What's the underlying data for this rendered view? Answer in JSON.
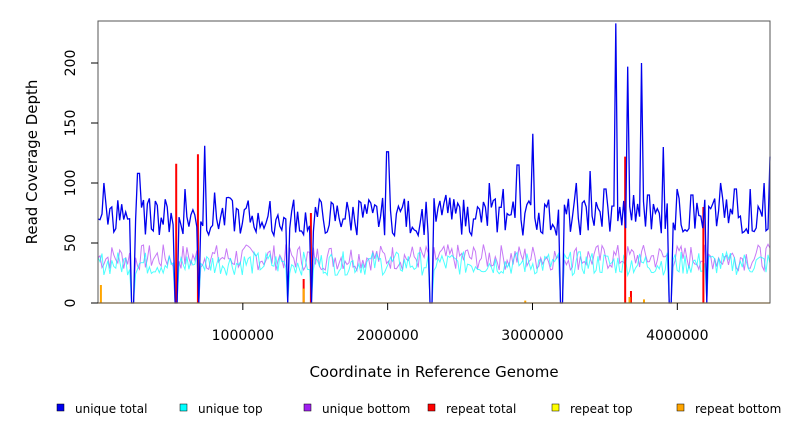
{
  "chart_data": {
    "type": "line",
    "xlabel": "Coordinate in Reference Genome",
    "ylabel": "Read Coverage Depth",
    "xlim": [
      0,
      4640000
    ],
    "ylim": [
      0,
      235
    ],
    "x_ticks": [
      {
        "value": 1000000,
        "label": "1000000"
      },
      {
        "value": 2000000,
        "label": "2000000"
      },
      {
        "value": 3000000,
        "label": "3000000"
      },
      {
        "value": 4000000,
        "label": "4000000"
      }
    ],
    "y_ticks": [
      {
        "value": 0,
        "label": "0"
      },
      {
        "value": 50,
        "label": "50"
      },
      {
        "value": 100,
        "label": "100"
      },
      {
        "value": 150,
        "label": "150"
      },
      {
        "value": 200,
        "label": "200"
      }
    ],
    "legend_position": "bottom",
    "series": [
      {
        "name": "unique total",
        "color": "#0000ee",
        "x": [
          0,
          40000,
          100000,
          120000,
          200000,
          240000,
          280000,
          400000,
          500000,
          540000,
          600000,
          700000,
          740000,
          800000,
          900000,
          1000000,
          1100000,
          1200000,
          1300000,
          1310000,
          1400000,
          1470000,
          1500000,
          1600000,
          1700000,
          1800000,
          1900000,
          2000000,
          2100000,
          2200000,
          2300000,
          2400000,
          2500000,
          2600000,
          2700000,
          2800000,
          2900000,
          3000000,
          3100000,
          3200000,
          3300000,
          3400000,
          3500000,
          3580000,
          3600000,
          3660000,
          3700000,
          3750000,
          3800000,
          3850000,
          3900000,
          3950000,
          4000000,
          4100000,
          4200000,
          4300000,
          4400000,
          4500000,
          4600000,
          4640000
        ],
        "y": [
          70,
          100,
          80,
          62,
          70,
          0,
          108,
          85,
          75,
          0,
          95,
          0,
          131,
          92,
          88,
          66,
          75,
          60,
          70,
          0,
          60,
          0,
          80,
          65,
          70,
          85,
          75,
          126,
          80,
          60,
          0,
          90,
          80,
          70,
          100,
          95,
          115,
          141,
          80,
          0,
          100,
          110,
          95,
          233,
          80,
          197,
          90,
          200,
          90,
          75,
          130,
          0,
          95,
          90,
          0,
          100,
          95,
          95,
          100,
          122
        ]
      },
      {
        "name": "unique top",
        "color": "#00ffff",
        "mean": 33
      },
      {
        "name": "unique bottom",
        "color": "#a020f0",
        "mean": 38
      },
      {
        "name": "repeat total",
        "color": "#ff0000",
        "x": [
          540000,
          690000,
          1420000,
          1470000,
          3640000,
          3680000,
          4180000
        ],
        "y": [
          116,
          124,
          20,
          75,
          122,
          10,
          80
        ]
      },
      {
        "name": "repeat top",
        "color": "#ffff00",
        "mean": 0
      },
      {
        "name": "repeat bottom",
        "color": "#ffa500",
        "x": [
          20000,
          1420000,
          2950000,
          3670000,
          3770000
        ],
        "y": [
          15,
          12,
          2,
          5,
          3
        ]
      }
    ]
  }
}
